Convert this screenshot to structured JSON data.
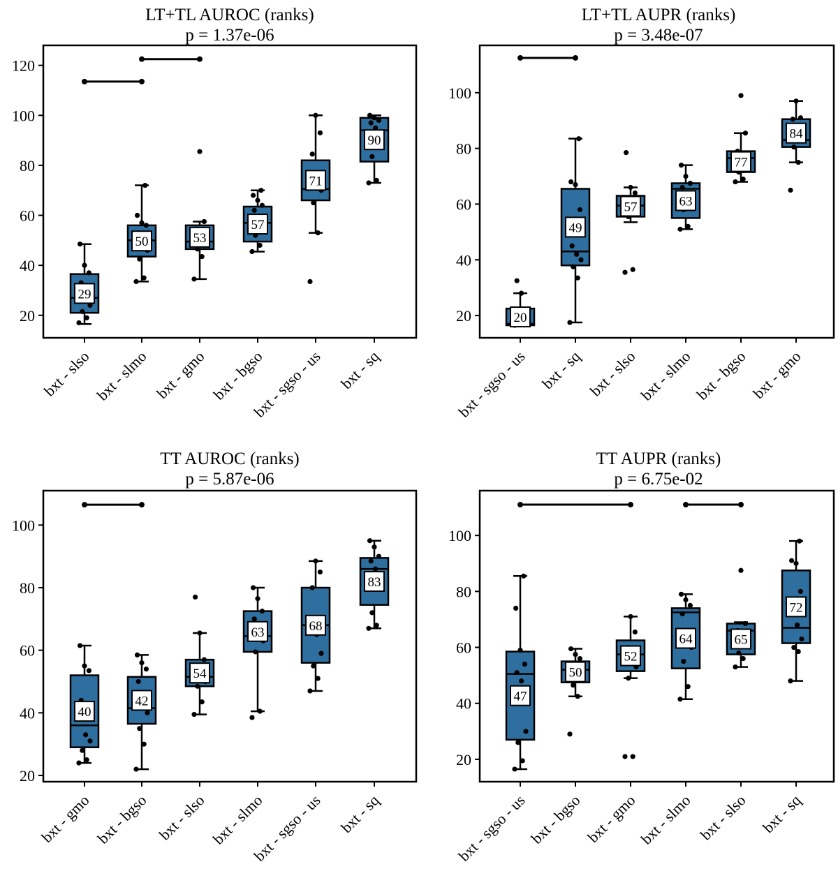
{
  "colors": {
    "box_fill": "#2f6f9f",
    "stroke": "#000000",
    "label_bg": "#ffffff"
  },
  "chart_data": [
    {
      "type": "box",
      "title": "LT+TL AUROC (ranks)",
      "subtitle": "p = 1.37e-06",
      "ylim": [
        11,
        128
      ],
      "yticks": [
        20,
        40,
        60,
        80,
        100,
        120
      ],
      "categories": [
        "bxt - slso",
        "bxt - slmo",
        "bxt - gmo",
        "bxt - bgso",
        "bxt - sgso - us",
        "bxt - sq"
      ],
      "boxes": [
        {
          "whisker_low": 16.5,
          "q1": 21,
          "median": 27,
          "q3": 36.5,
          "whisker_high": 48.5,
          "mean_label": "29",
          "points": [
            17,
            19,
            21.5,
            24,
            27,
            33,
            37,
            40,
            48.5
          ]
        },
        {
          "whisker_low": 33.5,
          "q1": 43.5,
          "median": 50,
          "q3": 56,
          "whisker_high": 72,
          "mean_label": "50",
          "points": [
            33.5,
            35,
            42.5,
            46,
            50,
            53,
            56,
            57,
            60,
            72
          ]
        },
        {
          "whisker_low": 34.5,
          "q1": 46.5,
          "median": 49.5,
          "q3": 56,
          "whisker_high": 57.5,
          "mean_label": "53",
          "points": [
            34.5,
            43.5,
            46.5,
            49.5,
            52,
            54.5,
            57.5,
            85.5
          ]
        },
        {
          "whisker_low": 45.5,
          "q1": 49.5,
          "median": 57,
          "q3": 63.5,
          "whisker_high": 70,
          "mean_label": "57",
          "points": [
            45.5,
            48,
            52,
            56,
            58,
            62,
            64,
            66,
            68,
            70
          ]
        },
        {
          "whisker_low": 53,
          "q1": 66,
          "median": 70.5,
          "q3": 82,
          "whisker_high": 100,
          "mean_label": "71",
          "points": [
            33.5,
            53,
            65,
            70,
            75,
            84.5,
            93,
            100
          ]
        },
        {
          "whisker_low": 73,
          "q1": 81.5,
          "median": 94,
          "q3": 99,
          "whisker_high": 100,
          "mean_label": "90",
          "points": [
            73,
            74,
            83.5,
            89,
            95,
            97,
            98,
            99,
            100
          ]
        }
      ],
      "brackets": [
        {
          "from": 1,
          "to": 2,
          "y": 113.5
        },
        {
          "from": 2,
          "to": 3,
          "y": 122.5
        }
      ]
    },
    {
      "type": "box",
      "title": "LT+TL AUPR (ranks)",
      "subtitle": "p = 3.48e-07",
      "ylim": [
        12,
        117
      ],
      "yticks": [
        20,
        40,
        60,
        80,
        100
      ],
      "categories": [
        "bxt - sgso - us",
        "bxt - sq",
        "bxt - slso",
        "bxt - slmo",
        "bxt - bgso",
        "bxt - gmo"
      ],
      "boxes": [
        {
          "whisker_low": 16.5,
          "q1": 16.5,
          "median": 17,
          "q3": 22.5,
          "whisker_high": 28,
          "mean_label": "20",
          "points": [
            16.5,
            17,
            17.5,
            20,
            28,
            32.5
          ]
        },
        {
          "whisker_low": 17.5,
          "q1": 38,
          "median": 43,
          "q3": 65.5,
          "whisker_high": 83.5,
          "mean_label": "49",
          "points": [
            17.5,
            33.5,
            37.5,
            40,
            42,
            45,
            58,
            67,
            68,
            83.5
          ]
        },
        {
          "whisker_low": 53.5,
          "q1": 55.5,
          "median": 59.5,
          "q3": 63,
          "whisker_high": 66,
          "mean_label": "57",
          "points": [
            35.5,
            36.5,
            55.5,
            58,
            60,
            62,
            64,
            66,
            78.5
          ]
        },
        {
          "whisker_low": 51,
          "q1": 55,
          "median": 65.5,
          "q3": 67.5,
          "whisker_high": 74,
          "mean_label": "63",
          "points": [
            51,
            52,
            58,
            61,
            64,
            66,
            67.5,
            70,
            74
          ]
        },
        {
          "whisker_low": 68,
          "q1": 71.5,
          "median": 76.5,
          "q3": 79,
          "whisker_high": 85.5,
          "mean_label": "77",
          "points": [
            68,
            69,
            71.5,
            73.5,
            76,
            79,
            85.5,
            99
          ]
        },
        {
          "whisker_low": 75,
          "q1": 80.5,
          "median": 83,
          "q3": 90.5,
          "whisker_high": 97,
          "mean_label": "84",
          "points": [
            65,
            75,
            80.5,
            84,
            87,
            90.5,
            91,
            97
          ]
        }
      ],
      "brackets": [
        {
          "from": 1,
          "to": 2,
          "y": 112.5
        }
      ]
    },
    {
      "type": "box",
      "title": "TT AUROC (ranks)",
      "subtitle": "p = 5.87e-06",
      "ylim": [
        18,
        111
      ],
      "yticks": [
        20,
        40,
        60,
        80,
        100
      ],
      "categories": [
        "bxt - gmo",
        "bxt - bgso",
        "bxt - slso",
        "bxt - slmo",
        "bxt - sgso - us",
        "bxt - sq"
      ],
      "boxes": [
        {
          "whisker_low": 24,
          "q1": 29,
          "median": 36,
          "q3": 52,
          "whisker_high": 61.5,
          "mean_label": "40",
          "points": [
            24,
            25,
            28,
            31,
            33,
            44,
            53.5,
            55,
            61.5
          ]
        },
        {
          "whisker_low": 22,
          "q1": 36.5,
          "median": 41.5,
          "q3": 51.5,
          "whisker_high": 58.5,
          "mean_label": "42",
          "points": [
            22,
            30,
            35,
            40,
            45,
            50,
            54,
            56,
            58.5
          ]
        },
        {
          "whisker_low": 39.5,
          "q1": 48.5,
          "median": 51.5,
          "q3": 57,
          "whisker_high": 65.5,
          "mean_label": "54",
          "points": [
            39.5,
            43.5,
            48.5,
            50,
            52,
            55,
            57,
            65.5,
            77
          ]
        },
        {
          "whisker_low": 40.5,
          "q1": 59.5,
          "median": 64.5,
          "q3": 72.5,
          "whisker_high": 80,
          "mean_label": "63",
          "points": [
            38.5,
            40.5,
            59.5,
            63,
            66,
            70,
            72.5,
            76.5,
            80
          ]
        },
        {
          "whisker_low": 47,
          "q1": 56,
          "median": 68,
          "q3": 80,
          "whisker_high": 88.5,
          "mean_label": "68",
          "points": [
            47,
            51,
            55,
            59,
            65,
            80,
            85,
            88.5
          ]
        },
        {
          "whisker_low": 67,
          "q1": 74.5,
          "median": 86,
          "q3": 89.5,
          "whisker_high": 95,
          "mean_label": "83",
          "points": [
            67,
            68,
            72,
            81,
            86,
            88.5,
            90,
            93,
            95
          ]
        }
      ],
      "brackets": [
        {
          "from": 1,
          "to": 2,
          "y": 106.5
        }
      ]
    },
    {
      "type": "box",
      "title": "TT AUPR (ranks)",
      "subtitle": "p = 6.75e-02",
      "ylim": [
        12,
        116
      ],
      "yticks": [
        20,
        40,
        60,
        80,
        100
      ],
      "categories": [
        "bxt - sgso - us",
        "bxt - bgso",
        "bxt - gmo",
        "bxt - slmo",
        "bxt - slso",
        "bxt - sq"
      ],
      "boxes": [
        {
          "whisker_low": 16.5,
          "q1": 27,
          "median": 50.5,
          "q3": 58.5,
          "whisker_high": 85.5,
          "mean_label": "47",
          "points": [
            16.5,
            19.5,
            26,
            30,
            48,
            51,
            54,
            59,
            74,
            85.5
          ]
        },
        {
          "whisker_low": 42.5,
          "q1": 47.5,
          "median": 52,
          "q3": 55,
          "whisker_high": 59.5,
          "mean_label": "50",
          "points": [
            29,
            42.5,
            46.5,
            50,
            52,
            54,
            56,
            57.5,
            59.5
          ]
        },
        {
          "whisker_low": 49,
          "q1": 51.5,
          "median": 57.5,
          "q3": 62.5,
          "whisker_high": 71,
          "mean_label": "52",
          "points": [
            21,
            21,
            49,
            53,
            56,
            60,
            65.5,
            71
          ]
        },
        {
          "whisker_low": 41.5,
          "q1": 52.5,
          "median": 72.5,
          "q3": 74,
          "whisker_high": 79,
          "mean_label": "64",
          "points": [
            41.5,
            46,
            55,
            60,
            65,
            72,
            75,
            77,
            79
          ]
        },
        {
          "whisker_low": 53,
          "q1": 57.5,
          "median": 66,
          "q3": 68.5,
          "whisker_high": 69,
          "mean_label": "65",
          "points": [
            53,
            56,
            58,
            61,
            64,
            66,
            68.5,
            87.5
          ]
        },
        {
          "whisker_low": 48,
          "q1": 61.5,
          "median": 67,
          "q3": 87.5,
          "whisker_high": 98,
          "mean_label": "72",
          "points": [
            48,
            58.5,
            60,
            63,
            68,
            76,
            80,
            90,
            91,
            98
          ]
        }
      ],
      "brackets": [
        {
          "from": 1,
          "to": 3,
          "y": 111
        },
        {
          "from": 4,
          "to": 5,
          "y": 111
        }
      ]
    }
  ]
}
